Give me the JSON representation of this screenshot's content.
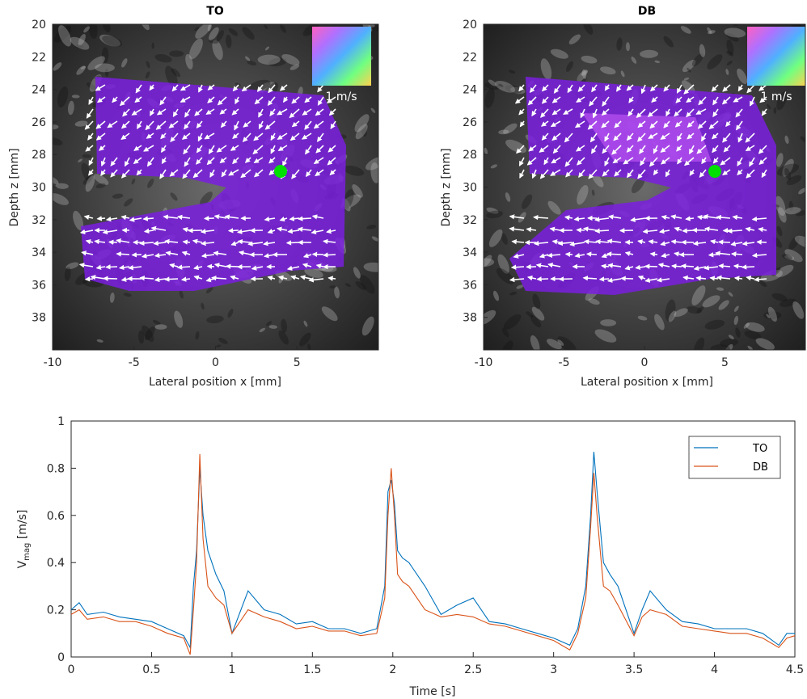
{
  "chart_data": [
    {
      "type": "heatmap",
      "title": "TO",
      "xlabel": "Lateral position x [mm]",
      "ylabel": "Depth z [mm]",
      "xlim": [
        -10,
        10
      ],
      "ylim": [
        20,
        40
      ],
      "y_reversed": true,
      "xticks": [
        "-10",
        "-5",
        "0",
        "5"
      ],
      "yticks": [
        "20",
        "22",
        "24",
        "26",
        "28",
        "30",
        "32",
        "34",
        "36",
        "38"
      ],
      "colorwheel_label": "1 m/s",
      "marker": {
        "x": 4,
        "z": 29,
        "color": "#00e000"
      },
      "overlay_color": "#8a2be2"
    },
    {
      "type": "heatmap",
      "title": "DB",
      "xlabel": "Lateral position x [mm]",
      "ylabel": "Depth z [mm]",
      "xlim": [
        -10,
        10
      ],
      "ylim": [
        20,
        40
      ],
      "y_reversed": true,
      "xticks": [
        "-10",
        "-5",
        "0",
        "5"
      ],
      "yticks": [
        "20",
        "22",
        "24",
        "26",
        "28",
        "30",
        "32",
        "34",
        "36",
        "38"
      ],
      "colorwheel_label": "1 m/s",
      "marker": {
        "x": 4,
        "z": 29,
        "color": "#00e000"
      },
      "overlay_color": "#8a2be2"
    },
    {
      "type": "line",
      "xlabel": "Time [s]",
      "ylabel_main": "V",
      "ylabel_sub": "mag",
      "ylabel_unit": " [m/s]",
      "xlim": [
        0,
        4.5
      ],
      "ylim": [
        0,
        1
      ],
      "xticks": [
        "0",
        "0.5",
        "1",
        "1.5",
        "2",
        "2.5",
        "3",
        "3.5",
        "4",
        "4.5"
      ],
      "yticks": [
        "0",
        "0.2",
        "0.4",
        "0.6",
        "0.8",
        "1"
      ],
      "legend_position": "top-right",
      "series": [
        {
          "name": "TO",
          "color": "#0072BD",
          "x": [
            0,
            0.05,
            0.1,
            0.2,
            0.3,
            0.4,
            0.5,
            0.6,
            0.7,
            0.74,
            0.76,
            0.78,
            0.8,
            0.82,
            0.85,
            0.9,
            0.95,
            1.0,
            1.1,
            1.2,
            1.3,
            1.4,
            1.5,
            1.6,
            1.7,
            1.8,
            1.9,
            1.95,
            1.97,
            1.99,
            2.01,
            2.03,
            2.06,
            2.1,
            2.2,
            2.3,
            2.4,
            2.5,
            2.6,
            2.7,
            2.8,
            2.9,
            3.0,
            3.1,
            3.15,
            3.2,
            3.23,
            3.25,
            3.27,
            3.29,
            3.31,
            3.35,
            3.4,
            3.5,
            3.55,
            3.6,
            3.7,
            3.8,
            3.9,
            4.0,
            4.1,
            4.2,
            4.3,
            4.4,
            4.45,
            4.5
          ],
          "y": [
            0.2,
            0.23,
            0.18,
            0.19,
            0.17,
            0.16,
            0.15,
            0.12,
            0.09,
            0.04,
            0.3,
            0.45,
            0.8,
            0.6,
            0.45,
            0.35,
            0.28,
            0.1,
            0.28,
            0.2,
            0.18,
            0.14,
            0.15,
            0.12,
            0.12,
            0.1,
            0.12,
            0.3,
            0.7,
            0.75,
            0.65,
            0.45,
            0.42,
            0.4,
            0.3,
            0.18,
            0.22,
            0.25,
            0.15,
            0.14,
            0.12,
            0.1,
            0.08,
            0.05,
            0.12,
            0.3,
            0.6,
            0.87,
            0.7,
            0.55,
            0.4,
            0.35,
            0.3,
            0.1,
            0.2,
            0.28,
            0.2,
            0.15,
            0.14,
            0.12,
            0.12,
            0.12,
            0.1,
            0.05,
            0.1,
            0.1
          ]
        },
        {
          "name": "DB",
          "color": "#D95319",
          "x": [
            0,
            0.05,
            0.1,
            0.2,
            0.3,
            0.4,
            0.5,
            0.6,
            0.7,
            0.74,
            0.76,
            0.78,
            0.8,
            0.82,
            0.85,
            0.9,
            0.95,
            1.0,
            1.1,
            1.2,
            1.3,
            1.4,
            1.5,
            1.6,
            1.7,
            1.8,
            1.9,
            1.95,
            1.97,
            1.99,
            2.01,
            2.03,
            2.06,
            2.1,
            2.2,
            2.3,
            2.4,
            2.5,
            2.6,
            2.7,
            2.8,
            2.9,
            3.0,
            3.1,
            3.15,
            3.2,
            3.23,
            3.25,
            3.27,
            3.29,
            3.31,
            3.35,
            3.4,
            3.5,
            3.55,
            3.6,
            3.7,
            3.8,
            3.9,
            4.0,
            4.1,
            4.2,
            4.3,
            4.4,
            4.45,
            4.5
          ],
          "y": [
            0.18,
            0.2,
            0.16,
            0.17,
            0.15,
            0.15,
            0.13,
            0.1,
            0.08,
            0.01,
            0.2,
            0.4,
            0.86,
            0.5,
            0.3,
            0.25,
            0.22,
            0.1,
            0.2,
            0.17,
            0.15,
            0.12,
            0.13,
            0.11,
            0.11,
            0.09,
            0.1,
            0.25,
            0.6,
            0.8,
            0.6,
            0.35,
            0.32,
            0.3,
            0.2,
            0.17,
            0.18,
            0.17,
            0.14,
            0.13,
            0.11,
            0.09,
            0.07,
            0.03,
            0.1,
            0.25,
            0.55,
            0.78,
            0.6,
            0.45,
            0.3,
            0.28,
            0.22,
            0.09,
            0.17,
            0.2,
            0.18,
            0.13,
            0.12,
            0.11,
            0.1,
            0.1,
            0.08,
            0.04,
            0.08,
            0.09
          ]
        }
      ]
    }
  ]
}
